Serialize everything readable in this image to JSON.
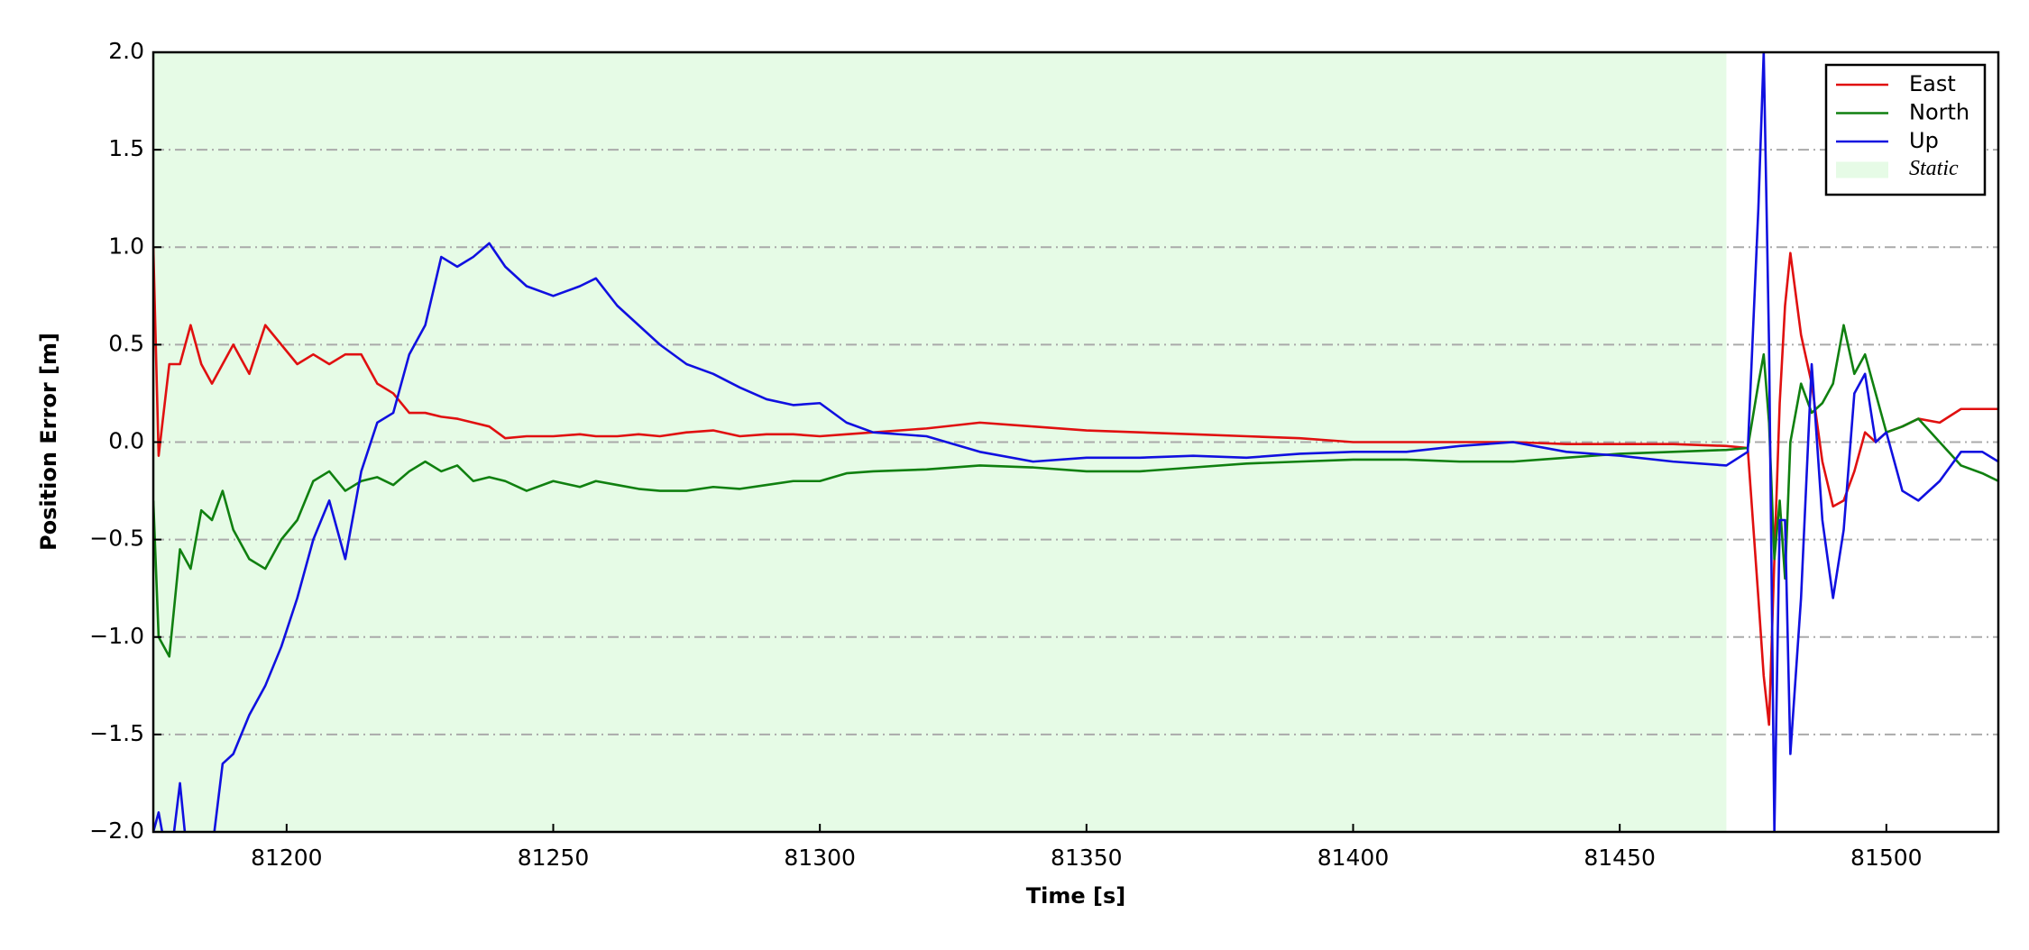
{
  "chart_data": {
    "type": "line",
    "x_label": "Time [s]",
    "y_label": "Position Error [m]",
    "xlim": [
      81175,
      81521
    ],
    "ylim": [
      -2.0,
      2.0
    ],
    "xticks": [
      81200,
      81250,
      81300,
      81350,
      81400,
      81450,
      81500
    ],
    "yticks": [
      {
        "value": -2.0,
        "label": "−2.0"
      },
      {
        "value": -1.5,
        "label": "−1.5"
      },
      {
        "value": -1.0,
        "label": "−1.0"
      },
      {
        "value": -0.5,
        "label": "−0.5"
      },
      {
        "value": 0.0,
        "label": "0.0"
      },
      {
        "value": 0.5,
        "label": "0.5"
      },
      {
        "value": 1.0,
        "label": "1.0"
      },
      {
        "value": 1.5,
        "label": "1.5"
      },
      {
        "value": 2.0,
        "label": "2.0"
      }
    ],
    "grid": "y",
    "legend": "upper right",
    "shaded_region": {
      "name": "Static",
      "color": "#e6fbe6",
      "x": [
        81175,
        81470
      ]
    },
    "x": [
      81175,
      81176,
      81178,
      81180,
      81182,
      81184,
      81186,
      81188,
      81190,
      81193,
      81196,
      81199,
      81202,
      81205,
      81208,
      81211,
      81214,
      81217,
      81220,
      81223,
      81226,
      81229,
      81232,
      81235,
      81238,
      81241,
      81245,
      81250,
      81255,
      81258,
      81262,
      81266,
      81270,
      81275,
      81280,
      81285,
      81290,
      81295,
      81300,
      81305,
      81310,
      81320,
      81330,
      81340,
      81350,
      81360,
      81370,
      81380,
      81390,
      81400,
      81410,
      81420,
      81430,
      81440,
      81450,
      81460,
      81470,
      81474,
      81476,
      81477,
      81478,
      81479,
      81480,
      81481,
      81482,
      81484,
      81486,
      81488,
      81490,
      81492,
      81494,
      81496,
      81498,
      81500,
      81503,
      81506,
      81510,
      81514,
      81518,
      81521
    ],
    "series": [
      {
        "name": "East",
        "color": "#e01010",
        "values": [
          1.0,
          -0.07,
          0.4,
          0.4,
          0.6,
          0.4,
          0.3,
          0.4,
          0.5,
          0.35,
          0.6,
          0.5,
          0.4,
          0.45,
          0.4,
          0.45,
          0.45,
          0.3,
          0.25,
          0.15,
          0.15,
          0.13,
          0.12,
          0.1,
          0.08,
          0.02,
          0.03,
          0.03,
          0.04,
          0.03,
          0.03,
          0.04,
          0.03,
          0.05,
          0.06,
          0.03,
          0.04,
          0.04,
          0.03,
          0.04,
          0.05,
          0.07,
          0.1,
          0.08,
          0.06,
          0.05,
          0.04,
          0.03,
          0.02,
          0.0,
          0.0,
          0.0,
          0.0,
          -0.01,
          -0.01,
          -0.01,
          -0.02,
          -0.03,
          -0.8,
          -1.2,
          -1.45,
          -0.6,
          0.2,
          0.7,
          0.97,
          0.55,
          0.3,
          -0.1,
          -0.33,
          -0.3,
          -0.15,
          0.05,
          0.0,
          0.05,
          0.08,
          0.12,
          0.1,
          0.17,
          0.17,
          0.17
        ]
      },
      {
        "name": "North",
        "color": "#108010",
        "values": [
          -0.3,
          -1.0,
          -1.1,
          -0.55,
          -0.65,
          -0.35,
          -0.4,
          -0.25,
          -0.45,
          -0.6,
          -0.65,
          -0.5,
          -0.4,
          -0.2,
          -0.15,
          -0.25,
          -0.2,
          -0.18,
          -0.22,
          -0.15,
          -0.1,
          -0.15,
          -0.12,
          -0.2,
          -0.18,
          -0.2,
          -0.25,
          -0.2,
          -0.23,
          -0.2,
          -0.22,
          -0.24,
          -0.25,
          -0.25,
          -0.23,
          -0.24,
          -0.22,
          -0.2,
          -0.2,
          -0.16,
          -0.15,
          -0.14,
          -0.12,
          -0.13,
          -0.15,
          -0.15,
          -0.13,
          -0.11,
          -0.1,
          -0.09,
          -0.09,
          -0.1,
          -0.1,
          -0.08,
          -0.06,
          -0.05,
          -0.04,
          -0.03,
          0.3,
          0.45,
          0.1,
          -0.6,
          -0.3,
          -0.7,
          0.0,
          0.3,
          0.15,
          0.2,
          0.3,
          0.6,
          0.35,
          0.45,
          0.25,
          0.05,
          0.08,
          0.12,
          0.0,
          -0.12,
          -0.16,
          -0.2
        ]
      },
      {
        "name": "Up",
        "color": "#1010e0",
        "values": [
          -2.0,
          -1.9,
          -2.2,
          -1.75,
          -2.3,
          -2.3,
          -2.1,
          -1.65,
          -1.6,
          -1.4,
          -1.25,
          -1.05,
          -0.8,
          -0.5,
          -0.3,
          -0.6,
          -0.15,
          0.1,
          0.15,
          0.45,
          0.6,
          0.95,
          0.9,
          0.95,
          1.02,
          0.9,
          0.8,
          0.75,
          0.8,
          0.84,
          0.7,
          0.6,
          0.5,
          0.4,
          0.35,
          0.28,
          0.22,
          0.19,
          0.2,
          0.1,
          0.05,
          0.03,
          -0.05,
          -0.1,
          -0.08,
          -0.08,
          -0.07,
          -0.08,
          -0.06,
          -0.05,
          -0.05,
          -0.02,
          0.0,
          -0.05,
          -0.07,
          -0.1,
          -0.12,
          -0.05,
          1.2,
          2.0,
          0.5,
          -2.0,
          -0.4,
          -0.4,
          -1.6,
          -0.8,
          0.4,
          -0.4,
          -0.8,
          -0.45,
          0.25,
          0.35,
          0.0,
          0.05,
          -0.25,
          -0.3,
          -0.2,
          -0.05,
          -0.05,
          -0.1
        ]
      }
    ]
  }
}
